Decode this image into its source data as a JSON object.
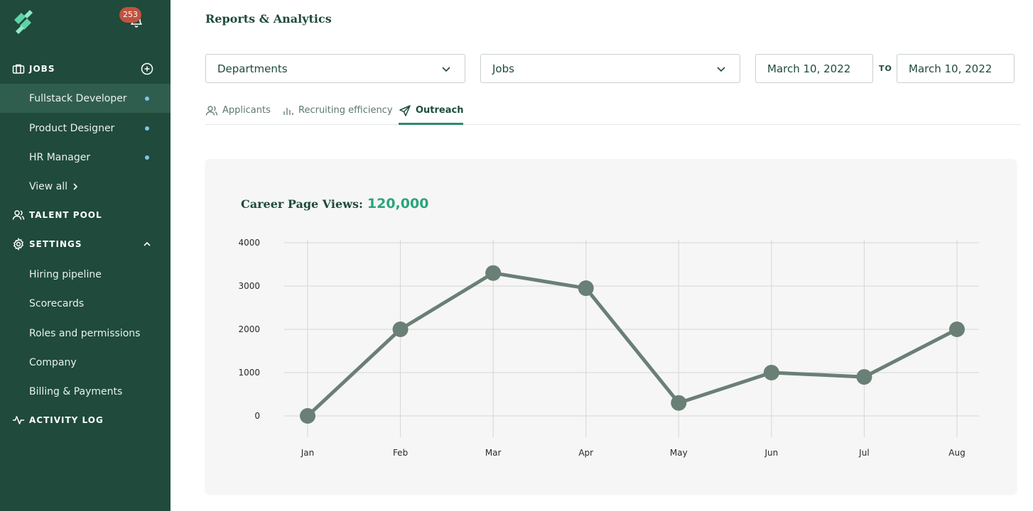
{
  "notifications": {
    "count": "253"
  },
  "sidebar": {
    "jobs": {
      "title": "JOBS",
      "items": [
        {
          "label": "Fullstack Developer",
          "active": true
        },
        {
          "label": "Product Designer",
          "active": false
        },
        {
          "label": "HR Manager",
          "active": false
        }
      ],
      "view_all": "View all"
    },
    "talent_pool": {
      "title": "TALENT POOL"
    },
    "settings": {
      "title": "SETTINGS",
      "items": [
        {
          "label": "Hiring pipeline"
        },
        {
          "label": "Scorecards"
        },
        {
          "label": "Roles and permissions"
        },
        {
          "label": "Company"
        },
        {
          "label": "Billing & Payments"
        }
      ]
    },
    "activity_log": {
      "title": "ACTIVITY LOG"
    }
  },
  "page": {
    "title": "Reports & Analytics"
  },
  "filters": {
    "departments": "Departments",
    "jobs": "Jobs",
    "date_from": "March 10, 2022",
    "to_label": "TO",
    "date_to": "March 10, 2022"
  },
  "tabs": [
    {
      "label": "Applicants",
      "icon": "users-icon",
      "active": false
    },
    {
      "label": "Recruiting efficiency",
      "icon": "bar-chart-icon",
      "active": false
    },
    {
      "label": "Outreach",
      "icon": "send-icon",
      "active": true
    }
  ],
  "colors": {
    "sidebar_bg": "#1f4a3c",
    "accent": "#2aa57c",
    "line": "#6a7f76",
    "badge": "#c0533f"
  },
  "chart_data": {
    "type": "line",
    "title": "Career Page Views:",
    "highlight_value": "120,000",
    "categories": [
      "Jan",
      "Feb",
      "Mar",
      "Apr",
      "May",
      "Jun",
      "Jul",
      "Aug"
    ],
    "values": [
      0,
      2000,
      3300,
      2950,
      300,
      1000,
      900,
      2000
    ],
    "yticks": [
      0,
      1000,
      2000,
      3000,
      4000
    ],
    "ylim": [
      0,
      4000
    ],
    "grid": true,
    "xlabel": "",
    "ylabel": ""
  }
}
